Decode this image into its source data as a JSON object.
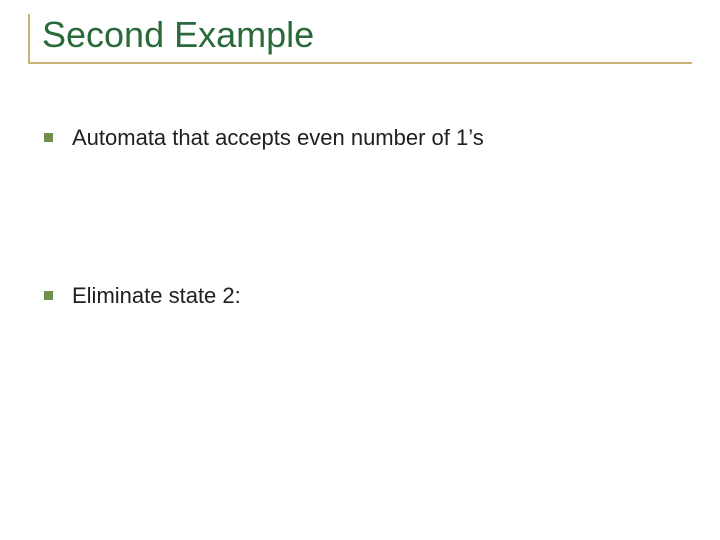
{
  "slide": {
    "title": "Second Example",
    "title_color": "#2a6a3a",
    "title_fontsize": 36,
    "rule_color": "#c9b273",
    "bullet_color": "#6f8f4a",
    "bullet_size": 9,
    "body_fontsize": 22,
    "items": [
      {
        "text": "Automata that accepts even number of 1’s"
      },
      {
        "text": "Eliminate state 2:"
      }
    ],
    "background_color": "#ffffff"
  }
}
